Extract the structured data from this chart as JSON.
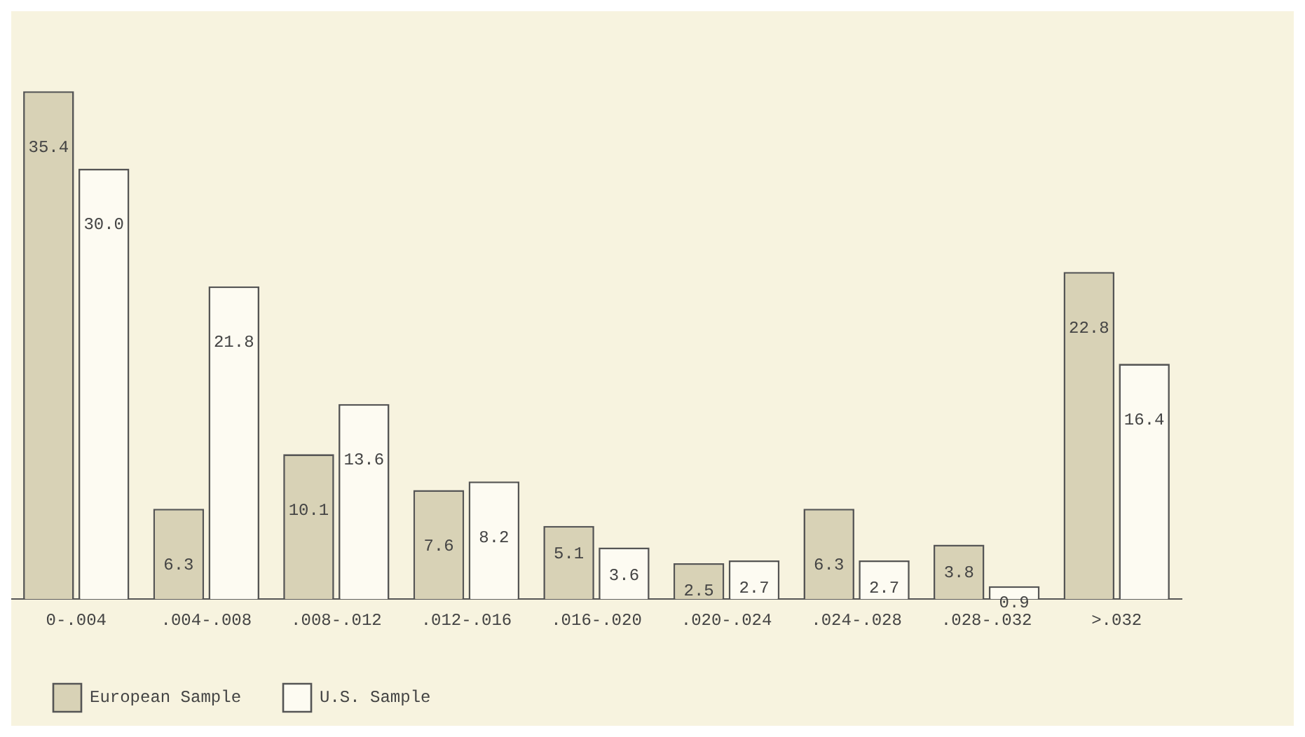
{
  "chart_data": {
    "type": "bar",
    "categories": [
      "0-.004",
      ".004-.008",
      ".008-.012",
      ".012-.016",
      ".016-.020",
      ".020-.024",
      ".024-.028",
      ".028-.032",
      ">.032"
    ],
    "series": [
      {
        "name": "European Sample",
        "color": "#d8d2b6",
        "values": [
          35.4,
          6.3,
          10.1,
          7.6,
          5.1,
          2.5,
          6.3,
          3.8,
          22.8
        ],
        "value_labels": [
          "35.4",
          "6.3",
          "10.1",
          "7.6",
          "5.1",
          "2.5",
          "6.3",
          "3.8",
          "22.8"
        ]
      },
      {
        "name": "U.S. Sample",
        "color": "#fdfbf2",
        "values": [
          30.0,
          21.8,
          13.6,
          8.2,
          3.6,
          2.7,
          2.7,
          0.9,
          16.4
        ],
        "value_labels": [
          "30.0",
          "21.8",
          "13.6",
          "8.2",
          "3.6",
          "2.7",
          "2.7",
          "0.9",
          "16.4"
        ]
      }
    ],
    "tick_labels": "x",
    "grid": false,
    "legend": "bottom left"
  }
}
